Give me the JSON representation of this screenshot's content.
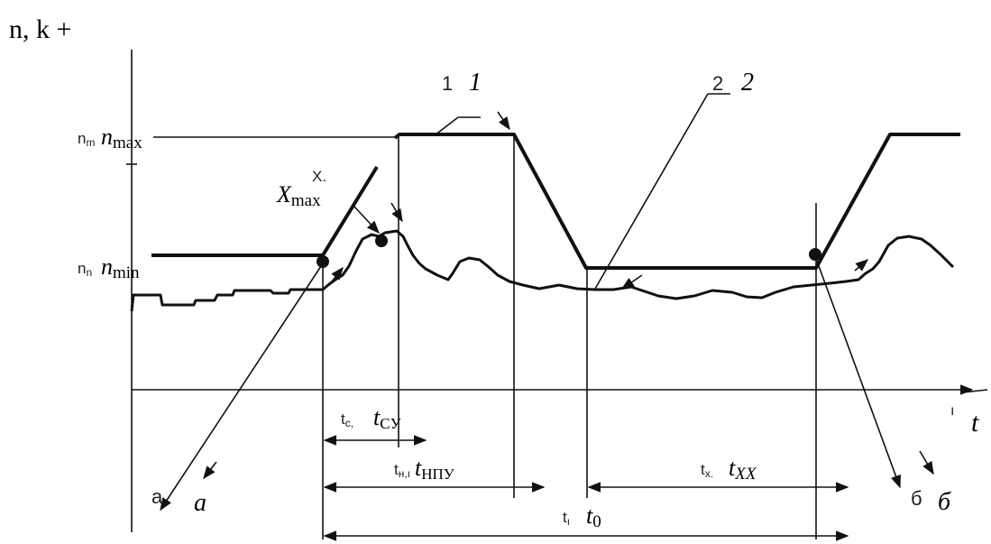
{
  "y_axis_label": "n, k +",
  "x_axis_label": "t",
  "x_axis_label_small": "ı",
  "levels": {
    "max_small": "n",
    "max_small_sub": "m",
    "max_main": "n",
    "max_sub": "max",
    "min_small": "n",
    "min_small_sub": "n",
    "min_main": "n",
    "min_sub": "min"
  },
  "x_labels": {
    "x_small": "X.",
    "x_max_main": "X",
    "x_max_sub": "max"
  },
  "curve_labels": {
    "one_plain": "1",
    "one_italic": "1",
    "two_plain": "2",
    "two_italic": "2"
  },
  "markers": {
    "a_plain": "a",
    "a_italic": "a",
    "b_plain": "б",
    "b_italic": "б"
  },
  "intervals": {
    "tc_small": "t",
    "tc_small_sub": "c,",
    "tcy_main": "t",
    "tcy_sub": "CУ",
    "tnpy_small": "t",
    "tnpy_small_sub": "н,ı",
    "tnpy_main": "t",
    "tnpy_sub": "НПУ",
    "tx_small": "t",
    "tx_small_sub": "x.",
    "txx_main": "t",
    "txx_sub": "XX",
    "tc_total_small": "t",
    "tc_total_small_sub": "ı",
    "t0_main": "t",
    "t0_sub": "0"
  }
}
